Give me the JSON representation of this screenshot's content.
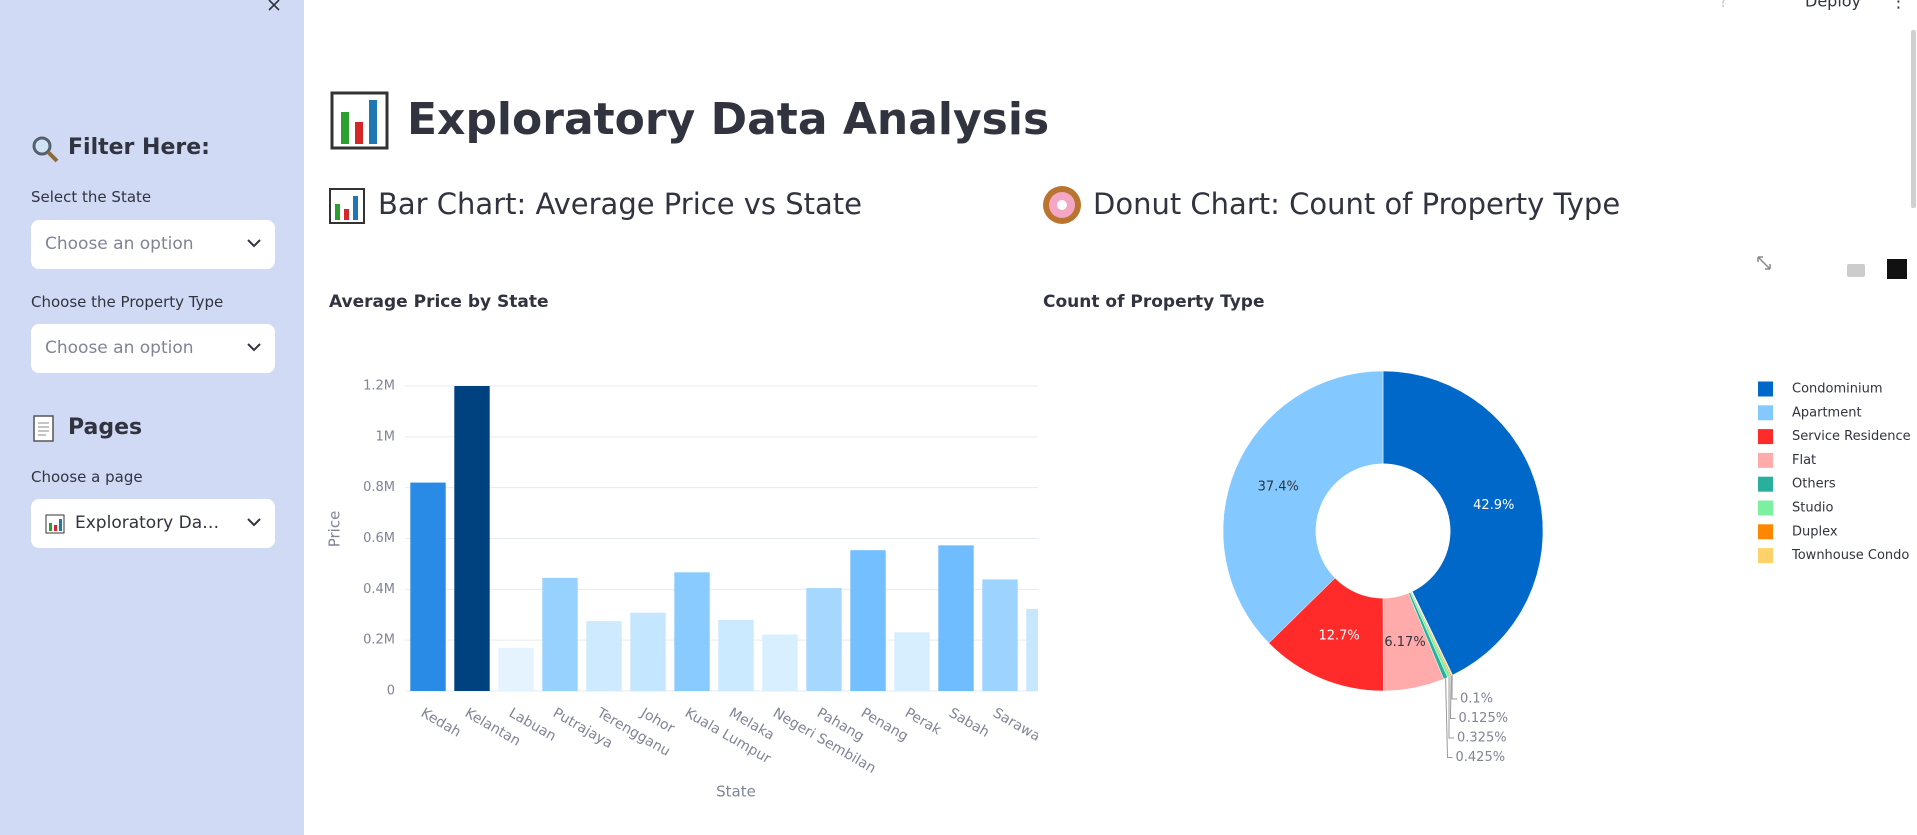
{
  "toolbar": {
    "deploy": "Deploy"
  },
  "sidebar": {
    "filter_title": "Filter Here:",
    "state_label": "Select the State",
    "state_placeholder": "Choose an option",
    "type_label": "Choose the Property Type",
    "type_placeholder": "Choose an option",
    "pages_title": "Pages",
    "page_label": "Choose a page",
    "page_value": "Exploratory Da…"
  },
  "header": {
    "title": "Exploratory Data Analysis"
  },
  "sections": [
    "Bar Chart: Average Price vs State",
    "Donut Chart: Count of Property Type"
  ],
  "chart_data": [
    {
      "type": "bar",
      "title": "Average Price by State",
      "x_label": "State",
      "y_label": "Price",
      "categories": [
        "Kedah",
        "Kelantan",
        "Labuan",
        "Putrajaya",
        "Terengganu",
        "Johor",
        "Kuala Lumpur",
        "Melaka",
        "Negeri Sembilan",
        "Pahang",
        "Penang",
        "Perak",
        "Sabah",
        "Sarawak",
        null
      ],
      "values": [
        820000,
        1200000,
        170000,
        445000,
        275000,
        308000,
        467000,
        280000,
        222000,
        405000,
        554000,
        231000,
        573000,
        439000,
        323000
      ],
      "colors": [
        "#2a8be6",
        "#004280",
        "#e4f3ff",
        "#97d2ff",
        "#cdeaff",
        "#c4e6ff",
        "#8acbff",
        "#cbe9ff",
        "#d8efff",
        "#a6d8ff",
        "#73bfff",
        "#d6eeff",
        "#6fbdff",
        "#9dd4ff",
        "#c7e7ff"
      ],
      "ylim": [
        0,
        1200000
      ],
      "yticks": [
        0,
        {
          "value": 200000,
          "label": "0.2M"
        },
        {
          "value": 400000,
          "label": "0.4M"
        },
        {
          "value": 600000,
          "label": "0.6M"
        },
        {
          "value": 800000,
          "label": "0.8M"
        },
        {
          "value": 1000000,
          "label": "1M"
        },
        {
          "value": 1200000,
          "label": "1.2M"
        }
      ],
      "grid": true
    },
    {
      "type": "pie",
      "title": "Count of Property Type",
      "categories": [
        "Condominium",
        "Apartment",
        "Service Residence",
        "Flat",
        "Others",
        "Studio",
        "Duplex",
        "Townhouse Condo"
      ],
      "values": [
        42.9,
        37.4,
        12.7,
        6.17,
        0.425,
        0.325,
        0.125,
        0.1
      ],
      "value_labels": [
        "42.9%",
        "37.4%",
        "12.7%",
        "6.17%",
        "0.425%",
        "0.325%",
        "0.125%",
        "0.1%"
      ],
      "colors": [
        "#0068c9",
        "#83c9ff",
        "#ff2b2b",
        "#ffabab",
        "#29b09d",
        "#7defa1",
        "#ff8700",
        "#ffd16a"
      ],
      "hole": 0.42,
      "legend": "right"
    }
  ]
}
